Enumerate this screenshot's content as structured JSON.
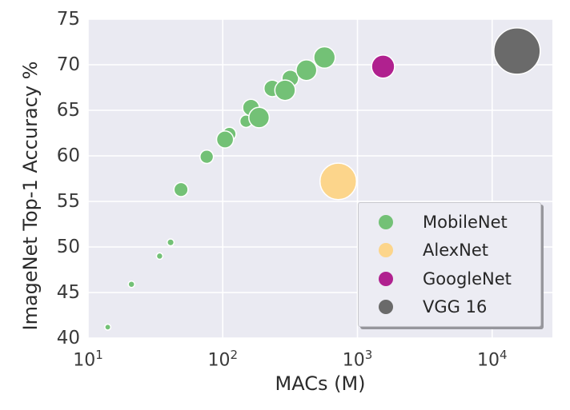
{
  "chart_data": {
    "type": "scatter",
    "title": "",
    "xlabel": "MACs (M)",
    "ylabel": "ImageNet Top-1 Accuracy %",
    "x_scale": "log",
    "xlim": [
      10,
      28000
    ],
    "ylim": [
      40,
      75
    ],
    "y_ticks": [
      75,
      70,
      65,
      60,
      55,
      50,
      45,
      40
    ],
    "x_tick_base": "10",
    "x_ticks_exponents": [
      1,
      2,
      3,
      4
    ],
    "grid": true,
    "legend_position": "lower right",
    "bubble_note": "r is marker radius in px, roughly proportional to model size",
    "series": [
      {
        "name": "MobileNet",
        "color": "#73c176",
        "points": [
          {
            "macs": 14,
            "acc": 41.2,
            "r": 3.7
          },
          {
            "macs": 21,
            "acc": 45.9,
            "r": 4.0
          },
          {
            "macs": 34,
            "acc": 49.0,
            "r": 4.0
          },
          {
            "macs": 41,
            "acc": 50.5,
            "r": 4.3
          },
          {
            "macs": 49,
            "acc": 56.3,
            "r": 8.8
          },
          {
            "macs": 76,
            "acc": 59.9,
            "r": 8.4
          },
          {
            "macs": 112,
            "acc": 62.4,
            "r": 8.4
          },
          {
            "macs": 149,
            "acc": 63.8,
            "r": 7.8
          },
          {
            "macs": 104,
            "acc": 61.8,
            "r": 10.6
          },
          {
            "macs": 162,
            "acc": 65.3,
            "r": 10.4
          },
          {
            "macs": 233,
            "acc": 67.4,
            "r": 10.4
          },
          {
            "macs": 317,
            "acc": 68.5,
            "r": 10.4
          },
          {
            "macs": 186,
            "acc": 64.2,
            "r": 12.8
          },
          {
            "macs": 290,
            "acc": 67.2,
            "r": 12.8
          },
          {
            "macs": 418,
            "acc": 69.4,
            "r": 12.9
          },
          {
            "macs": 569,
            "acc": 70.8,
            "r": 13.4
          }
        ]
      },
      {
        "name": "AlexNet",
        "color": "#fcd58b",
        "points": [
          {
            "macs": 720,
            "acc": 57.2,
            "r": 22.8
          }
        ]
      },
      {
        "name": "GoogleNet",
        "color": "#b0218f",
        "points": [
          {
            "macs": 1550,
            "acc": 69.8,
            "r": 14.4
          }
        ]
      },
      {
        "name": "VGG 16",
        "color": "#6a6a6a",
        "points": [
          {
            "macs": 15300,
            "acc": 71.5,
            "r": 29
          }
        ]
      }
    ],
    "colors": {
      "plot_background": "#eaeaf2",
      "grid": "#ffffff",
      "marker_edge": "#ffffff",
      "legend_background": "#ececf3",
      "legend_border": "#c7c7cd",
      "legend_shadow": "#96969c",
      "text": "#2b2b2b"
    }
  }
}
